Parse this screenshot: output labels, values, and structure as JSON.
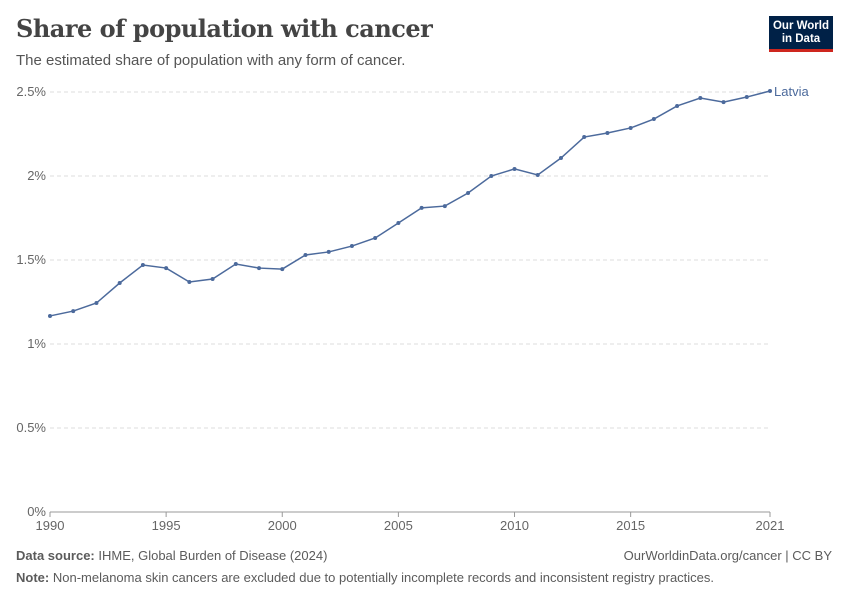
{
  "header": {
    "title": "Share of population with cancer",
    "subtitle": "The estimated share of population with any form of cancer.",
    "logo": "Our World in Data"
  },
  "footer": {
    "source_label": "Data source:",
    "source": "IHME, Global Burden of Disease (2024)",
    "link": "OurWorldinData.org/cancer | CC BY",
    "note_label": "Note:",
    "note": "Non-melanoma skin cancers are excluded due to potentially incomplete records and inconsistent registry practices."
  },
  "chart_data": {
    "type": "line",
    "title": "Share of population with cancer",
    "xlim": [
      1990,
      2021
    ],
    "ylim": [
      0,
      2.5
    ],
    "x_ticks": [
      "1990",
      "1995",
      "2000",
      "2005",
      "2010",
      "2015",
      "2021"
    ],
    "y_ticks": [
      "0%",
      "0.5%",
      "1%",
      "1.5%",
      "2%",
      "2.5%"
    ],
    "grid": "horizontal dashed",
    "color": "#4c6a9c",
    "series": [
      {
        "name": "Latvia",
        "x": [
          1990,
          1991,
          1992,
          1993,
          1994,
          1995,
          1996,
          1997,
          1998,
          1999,
          2000,
          2001,
          2002,
          2003,
          2004,
          2005,
          2006,
          2007,
          2008,
          2009,
          2010,
          2011,
          2012,
          2013,
          2014,
          2015,
          2016,
          2017,
          2018,
          2019,
          2020,
          2021
        ],
        "y": [
          1.167,
          1.196,
          1.244,
          1.363,
          1.47,
          1.452,
          1.369,
          1.387,
          1.476,
          1.452,
          1.446,
          1.53,
          1.548,
          1.583,
          1.631,
          1.72,
          1.81,
          1.821,
          1.899,
          2.0,
          2.042,
          2.006,
          2.107,
          2.232,
          2.256,
          2.286,
          2.339,
          2.417,
          2.464,
          2.44,
          2.47,
          2.506
        ]
      }
    ]
  }
}
